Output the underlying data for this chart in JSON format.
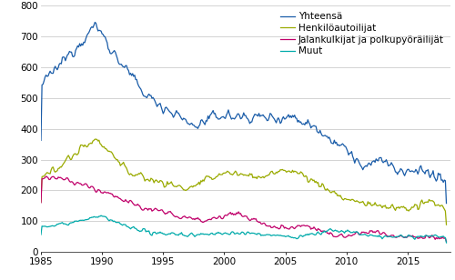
{
  "series": {
    "Yhteensä": {
      "color": "#1a5ca8",
      "linewidth": 0.9
    },
    "Henkilöautoilijat": {
      "color": "#9aaa00",
      "linewidth": 0.9
    },
    "Jalankulkijat ja polkupyöräilijät": {
      "color": "#c0006a",
      "linewidth": 0.9
    },
    "Muut": {
      "color": "#00aaaa",
      "linewidth": 0.9
    }
  },
  "xlim": [
    1985.0,
    2018.5
  ],
  "ylim": [
    0,
    800
  ],
  "yticks": [
    0,
    100,
    200,
    300,
    400,
    500,
    600,
    700,
    800
  ],
  "xticks": [
    1985,
    1990,
    1995,
    2000,
    2005,
    2010,
    2015
  ],
  "grid_color": "#cccccc",
  "background_color": "#ffffff",
  "legend_fontsize": 7.5,
  "tick_fontsize": 7.5,
  "fig_width": 5.0,
  "fig_height": 3.08,
  "dpi": 100
}
